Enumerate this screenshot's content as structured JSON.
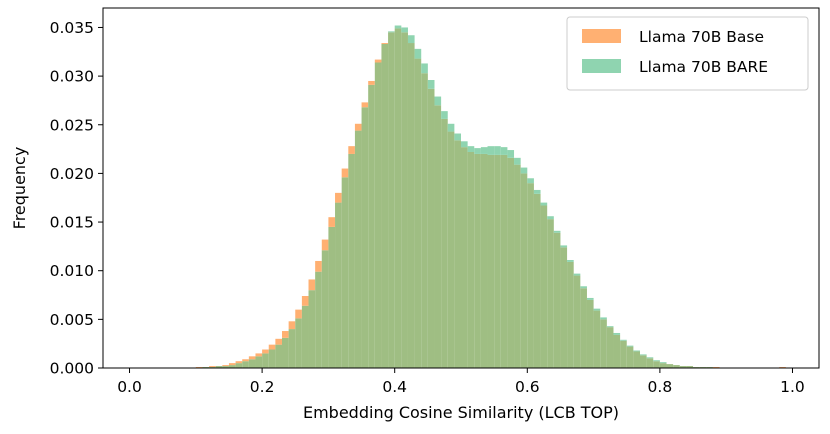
{
  "chart_data": {
    "type": "bar",
    "xlabel": "Embedding Cosine Similarity (LCB TOP)",
    "ylabel": "Frequency",
    "xlim": [
      -0.04,
      1.04
    ],
    "ylim": [
      0,
      0.037
    ],
    "xticks": [
      "0.0",
      "0.2",
      "0.4",
      "0.6",
      "0.8",
      "1.0"
    ],
    "yticks": [
      "0.000",
      "0.005",
      "0.010",
      "0.015",
      "0.020",
      "0.025",
      "0.030",
      "0.035"
    ],
    "bin_width": 0.01,
    "bin_starts": [
      0.1,
      0.11,
      0.12,
      0.13,
      0.14,
      0.15,
      0.16,
      0.17,
      0.18,
      0.19,
      0.2,
      0.21,
      0.22,
      0.23,
      0.24,
      0.25,
      0.26,
      0.27,
      0.28,
      0.29,
      0.3,
      0.31,
      0.32,
      0.33,
      0.34,
      0.35,
      0.36,
      0.37,
      0.38,
      0.39,
      0.4,
      0.41,
      0.42,
      0.43,
      0.44,
      0.45,
      0.46,
      0.47,
      0.48,
      0.49,
      0.5,
      0.51,
      0.52,
      0.53,
      0.54,
      0.55,
      0.56,
      0.57,
      0.58,
      0.59,
      0.6,
      0.61,
      0.62,
      0.63,
      0.64,
      0.65,
      0.66,
      0.67,
      0.68,
      0.69,
      0.7,
      0.71,
      0.72,
      0.73,
      0.74,
      0.75,
      0.76,
      0.77,
      0.78,
      0.79,
      0.8,
      0.81,
      0.82,
      0.83,
      0.84,
      0.85,
      0.86,
      0.87,
      0.88,
      0.89,
      0.9,
      0.91,
      0.92,
      0.93,
      0.94,
      0.95,
      0.96,
      0.97,
      0.98,
      0.99
    ],
    "series": [
      {
        "name": "Llama 70B Base",
        "color": "#ffb072",
        "values": [
          0.0001,
          0.0001,
          0.0002,
          0.0002,
          0.0003,
          0.0005,
          0.0007,
          0.0009,
          0.0012,
          0.0015,
          0.0019,
          0.0024,
          0.003,
          0.0038,
          0.0048,
          0.006,
          0.0074,
          0.0091,
          0.011,
          0.0132,
          0.0155,
          0.018,
          0.0205,
          0.0228,
          0.0251,
          0.0273,
          0.0295,
          0.0317,
          0.0334,
          0.0345,
          0.0349,
          0.0345,
          0.0334,
          0.0318,
          0.0303,
          0.0287,
          0.027,
          0.0256,
          0.0243,
          0.0234,
          0.0227,
          0.0222,
          0.022,
          0.022,
          0.0219,
          0.0219,
          0.0219,
          0.0216,
          0.0209,
          0.02,
          0.019,
          0.0179,
          0.0167,
          0.0153,
          0.0139,
          0.0124,
          0.0109,
          0.0095,
          0.0082,
          0.007,
          0.0059,
          0.005,
          0.0042,
          0.0034,
          0.0028,
          0.0022,
          0.0017,
          0.0013,
          0.001,
          0.0007,
          0.0005,
          0.0004,
          0.0003,
          0.0002,
          0.0002,
          0.0001,
          0.0001,
          0.0001,
          0.0001,
          5e-05,
          5e-05,
          5e-05,
          5e-05,
          3e-05,
          3e-05,
          3e-05,
          3e-05,
          3e-05,
          0.0001,
          5e-05
        ]
      },
      {
        "name": "Llama 70B BARE",
        "color": "#8fd4b0",
        "values": [
          5e-05,
          0.0001,
          0.0001,
          0.0002,
          0.0002,
          0.0003,
          0.0005,
          0.0007,
          0.0009,
          0.0012,
          0.0015,
          0.0019,
          0.0024,
          0.0031,
          0.004,
          0.0051,
          0.0064,
          0.008,
          0.0099,
          0.0121,
          0.0145,
          0.017,
          0.0196,
          0.022,
          0.0244,
          0.0268,
          0.0291,
          0.0314,
          0.0333,
          0.0346,
          0.0352,
          0.035,
          0.0342,
          0.0328,
          0.0313,
          0.0296,
          0.0279,
          0.0264,
          0.0251,
          0.0241,
          0.0233,
          0.0228,
          0.0226,
          0.0227,
          0.0228,
          0.0228,
          0.0227,
          0.0224,
          0.0216,
          0.0206,
          0.0195,
          0.0183,
          0.017,
          0.0156,
          0.0141,
          0.0126,
          0.0111,
          0.0097,
          0.0084,
          0.0072,
          0.0061,
          0.0052,
          0.0043,
          0.0036,
          0.0029,
          0.0023,
          0.0018,
          0.0014,
          0.0011,
          0.0008,
          0.0006,
          0.0004,
          0.0003,
          0.0002,
          0.0002,
          0.0001,
          0.0001,
          0.0001,
          5e-05,
          5e-05,
          5e-05,
          3e-05,
          3e-05,
          3e-05,
          3e-05,
          3e-05,
          3e-05,
          3e-05,
          5e-05,
          3e-05
        ]
      }
    ],
    "overlap_color": "#9fbe83",
    "legend_position": "top-right",
    "grid": false
  }
}
